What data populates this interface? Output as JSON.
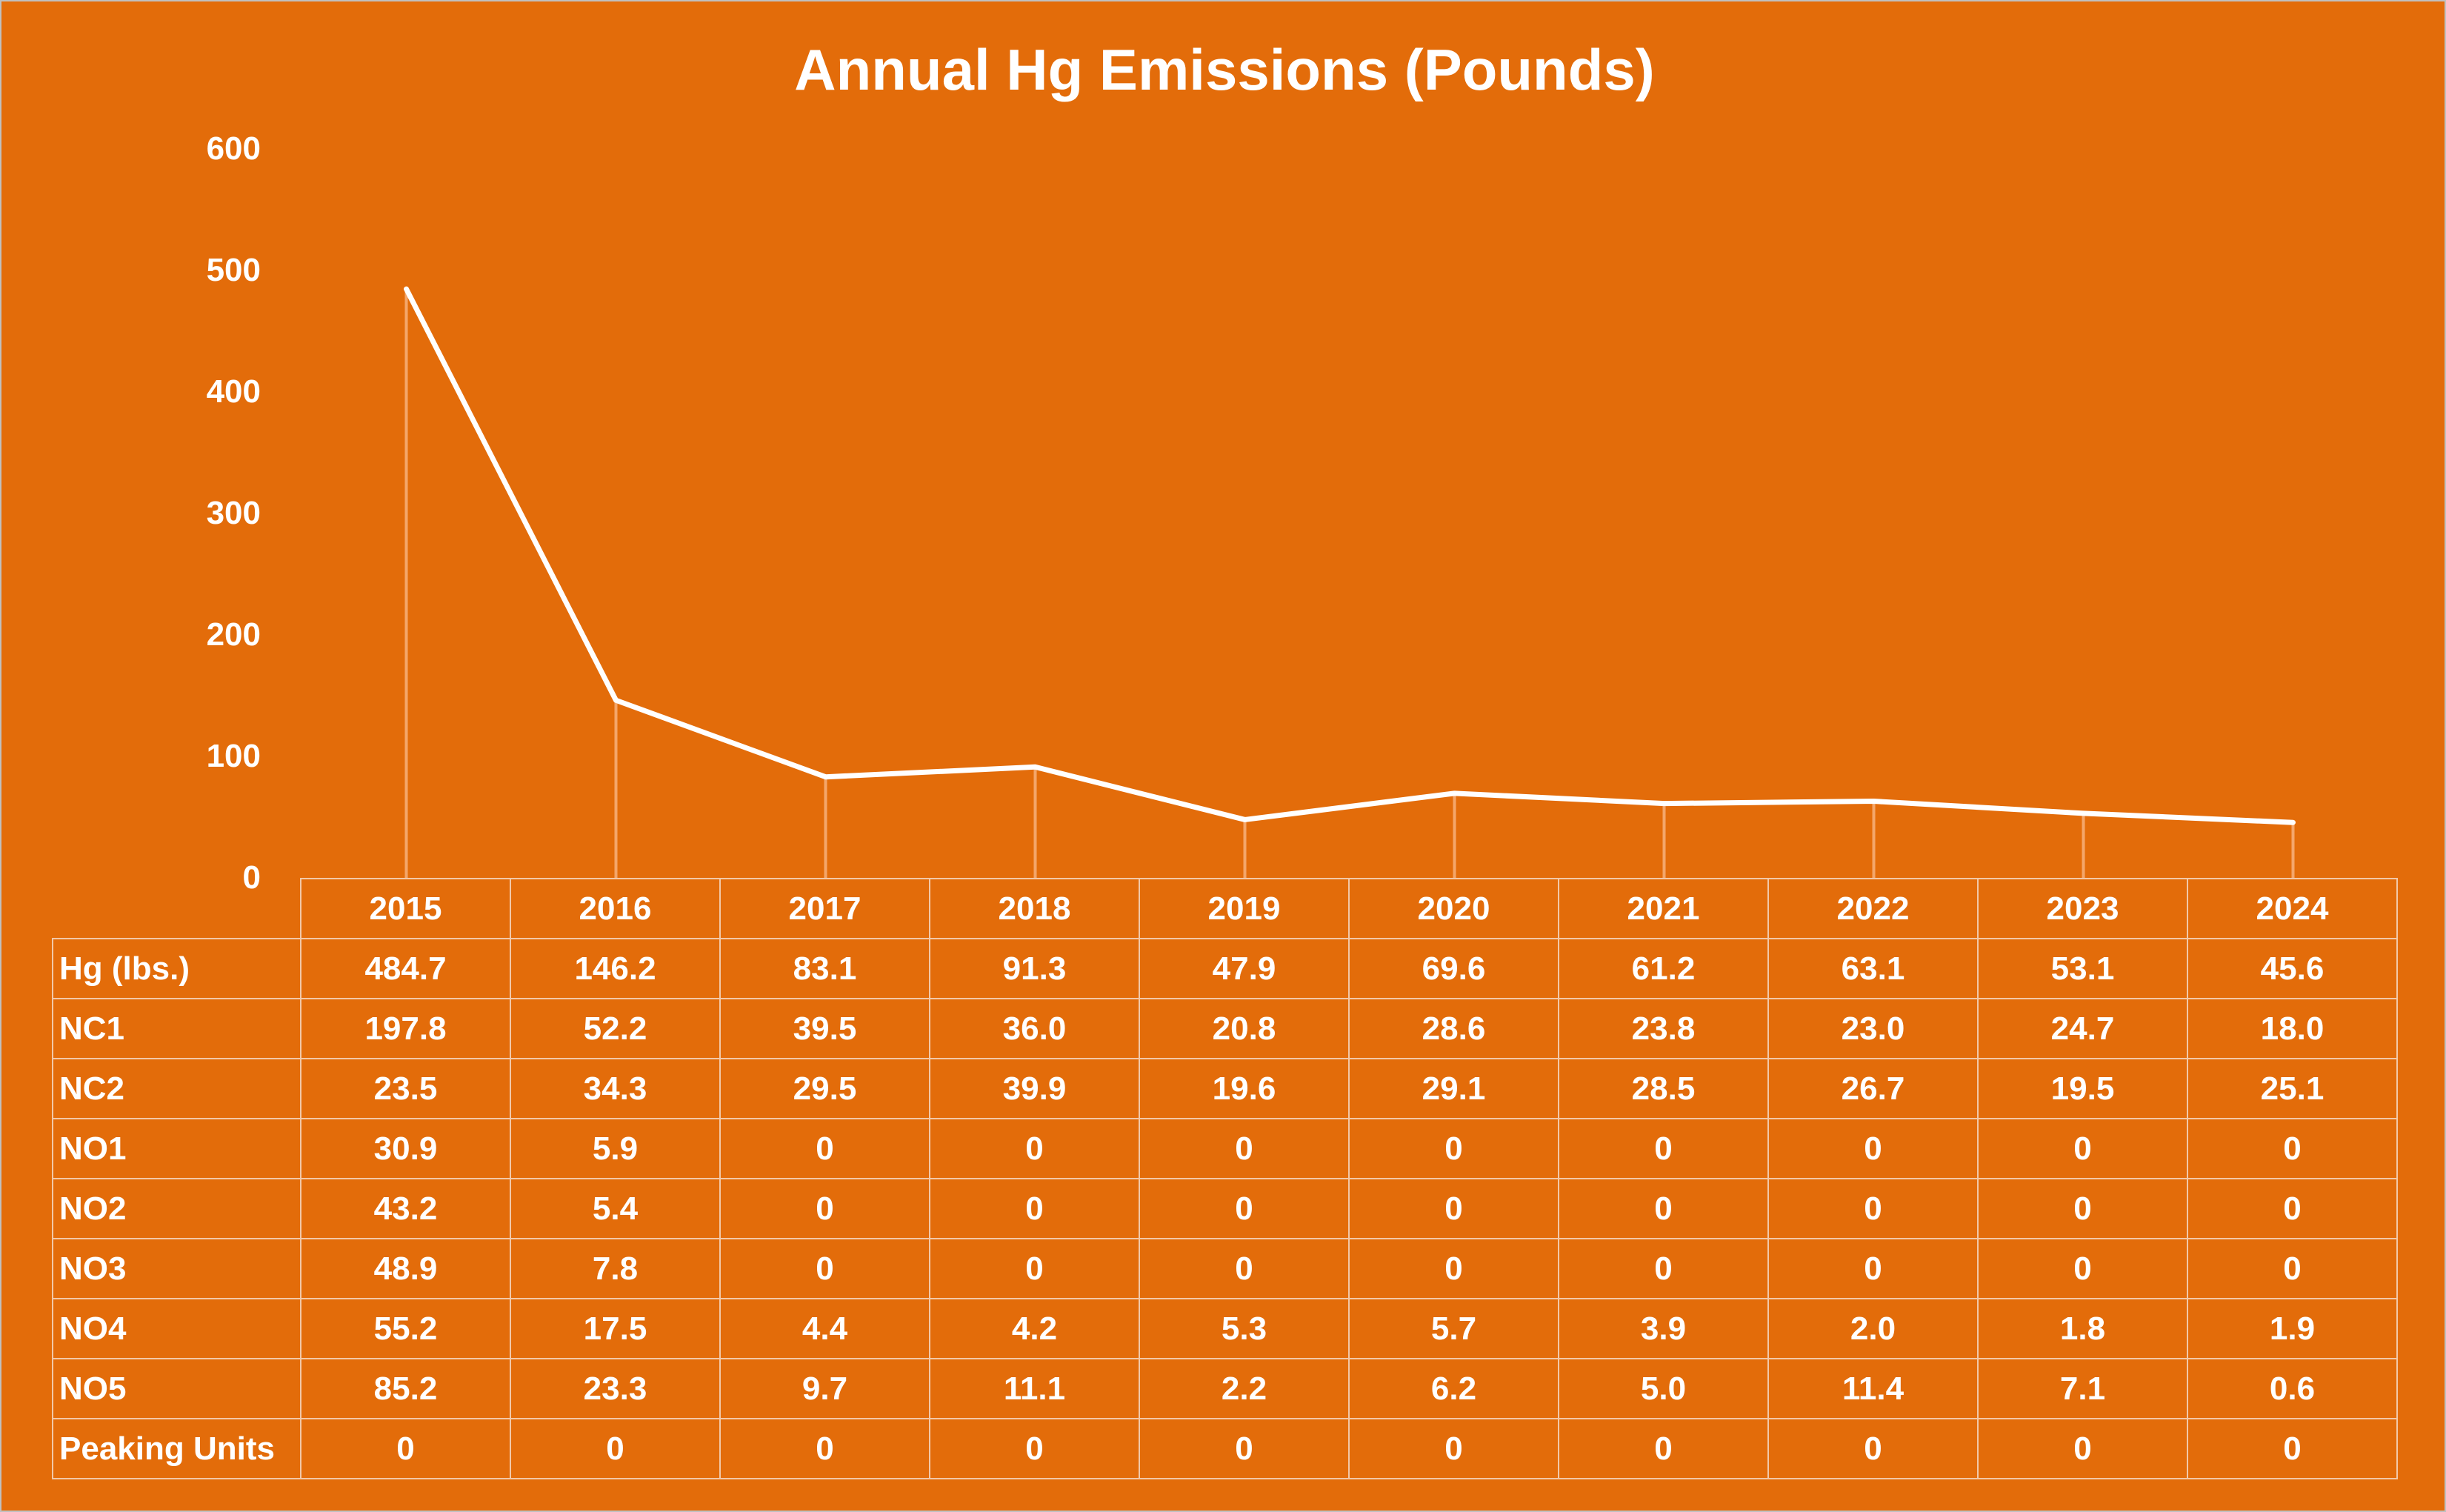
{
  "chart_data": {
    "type": "line",
    "title": "Annual Hg Emissions (Pounds)",
    "categories": [
      "2015",
      "2016",
      "2017",
      "2018",
      "2019",
      "2020",
      "2021",
      "2022",
      "2023",
      "2024"
    ],
    "ylim": [
      0,
      600
    ],
    "yticks": [
      "0",
      "100",
      "200",
      "300",
      "400",
      "500",
      "600"
    ],
    "series_color": "#FFFFFF",
    "background_color": "#E36C0A",
    "grid": false,
    "legend": "none",
    "data_table": true,
    "plotted_series": "Hg (lbs.)",
    "series": [
      {
        "name": "Hg (lbs.)",
        "values": [
          484.7,
          146.2,
          83.1,
          91.3,
          47.9,
          69.6,
          61.2,
          63.1,
          53.1,
          45.6
        ],
        "labels": [
          "484.7",
          "146.2",
          "83.1",
          "91.3",
          "47.9",
          "69.6",
          "61.2",
          "63.1",
          "53.1",
          "45.6"
        ]
      },
      {
        "name": "NC1",
        "values": [
          197.8,
          52.2,
          39.5,
          36.0,
          20.8,
          28.6,
          23.8,
          23.0,
          24.7,
          18.0
        ],
        "labels": [
          "197.8",
          "52.2",
          "39.5",
          "36.0",
          "20.8",
          "28.6",
          "23.8",
          "23.0",
          "24.7",
          "18.0"
        ]
      },
      {
        "name": "NC2",
        "values": [
          23.5,
          34.3,
          29.5,
          39.9,
          19.6,
          29.1,
          28.5,
          26.7,
          19.5,
          25.1
        ],
        "labels": [
          "23.5",
          "34.3",
          "29.5",
          "39.9",
          "19.6",
          "29.1",
          "28.5",
          "26.7",
          "19.5",
          "25.1"
        ]
      },
      {
        "name": "NO1",
        "values": [
          30.9,
          5.9,
          0,
          0,
          0,
          0,
          0,
          0,
          0,
          0
        ],
        "labels": [
          "30.9",
          "5.9",
          "0",
          "0",
          "0",
          "0",
          "0",
          "0",
          "0",
          "0"
        ]
      },
      {
        "name": "NO2",
        "values": [
          43.2,
          5.4,
          0,
          0,
          0,
          0,
          0,
          0,
          0,
          0
        ],
        "labels": [
          "43.2",
          "5.4",
          "0",
          "0",
          "0",
          "0",
          "0",
          "0",
          "0",
          "0"
        ]
      },
      {
        "name": "NO3",
        "values": [
          48.9,
          7.8,
          0,
          0,
          0,
          0,
          0,
          0,
          0,
          0
        ],
        "labels": [
          "48.9",
          "7.8",
          "0",
          "0",
          "0",
          "0",
          "0",
          "0",
          "0",
          "0"
        ]
      },
      {
        "name": "NO4",
        "values": [
          55.2,
          17.5,
          4.4,
          4.2,
          5.3,
          5.7,
          3.9,
          2.0,
          1.8,
          1.9
        ],
        "labels": [
          "55.2",
          "17.5",
          "4.4",
          "4.2",
          "5.3",
          "5.7",
          "3.9",
          "2.0",
          "1.8",
          "1.9"
        ]
      },
      {
        "name": "NO5",
        "values": [
          85.2,
          23.3,
          9.7,
          11.1,
          2.2,
          6.2,
          5.0,
          11.4,
          7.1,
          0.6
        ],
        "labels": [
          "85.2",
          "23.3",
          "9.7",
          "11.1",
          "2.2",
          "6.2",
          "5.0",
          "11.4",
          "7.1",
          "0.6"
        ]
      },
      {
        "name": "Peaking Units",
        "values": [
          0,
          0,
          0,
          0,
          0,
          0,
          0,
          0,
          0,
          0
        ],
        "labels": [
          "0",
          "0",
          "0",
          "0",
          "0",
          "0",
          "0",
          "0",
          "0",
          "0"
        ]
      }
    ]
  }
}
